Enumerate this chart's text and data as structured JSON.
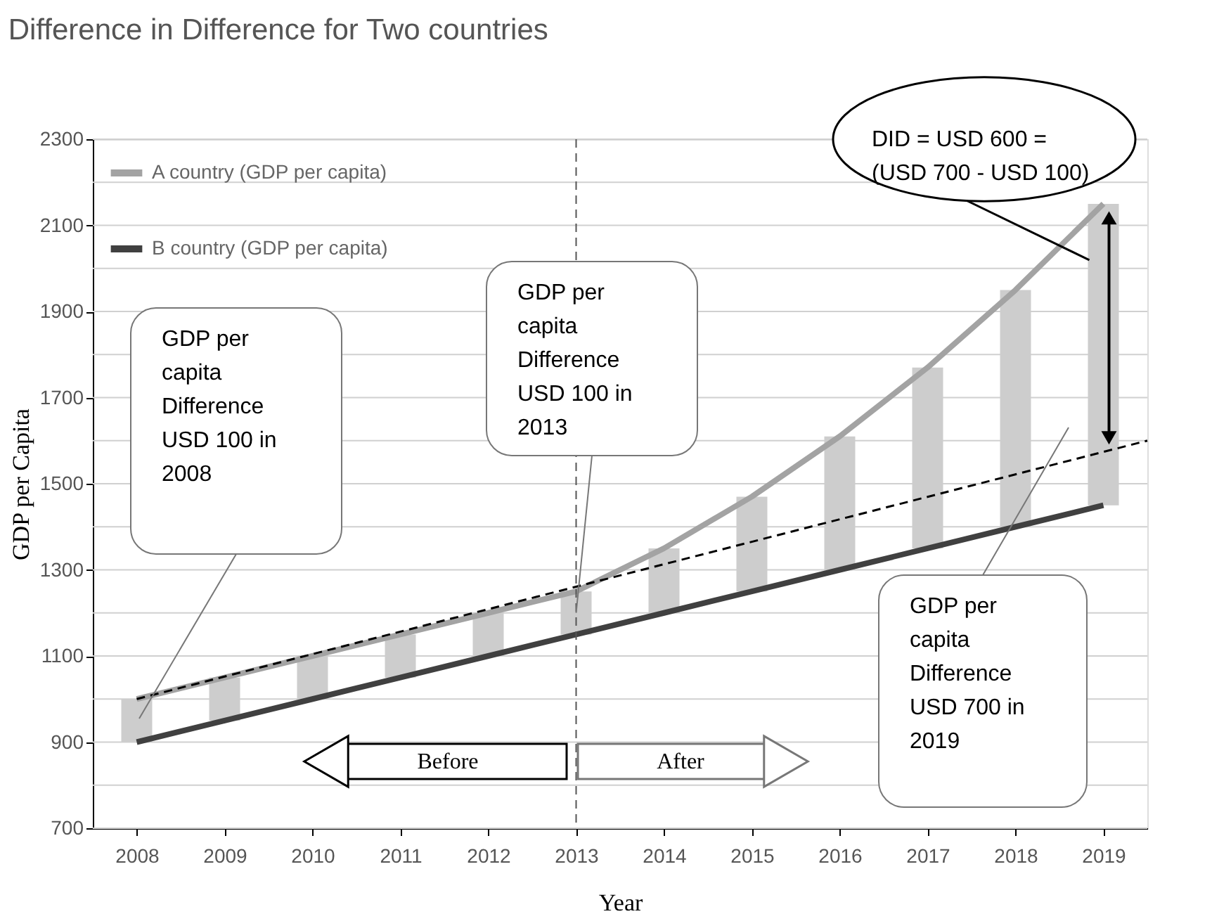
{
  "chart_data": {
    "type": "line",
    "title": "Difference in Difference for Two countries",
    "xlabel": "Year",
    "ylabel": "GDP per Capita",
    "x": [
      2008,
      2009,
      2010,
      2011,
      2012,
      2013,
      2014,
      2015,
      2016,
      2017,
      2018,
      2019
    ],
    "series": [
      {
        "type": "bar",
        "color": "#cdcdcd",
        "base": [
          900,
          950,
          1000,
          1050,
          1100,
          1150,
          1200,
          1250,
          1300,
          1350,
          1400,
          1450
        ],
        "values": [
          100,
          100,
          100,
          100,
          100,
          100,
          150,
          220,
          310,
          420,
          550,
          700
        ]
      },
      {
        "name": "A country    (GDP per capita)",
        "color": "#a3a3a3",
        "values": [
          1000,
          1050,
          1100,
          1150,
          1200,
          1250,
          1350,
          1470,
          1610,
          1770,
          1950,
          2150
        ]
      },
      {
        "name": "B country    (GDP per capita)",
        "color": "#404040",
        "values": [
          900,
          950,
          1000,
          1050,
          1100,
          1150,
          1200,
          1250,
          1300,
          1350,
          1400,
          1450
        ]
      },
      {
        "type": "line",
        "line_style": "dashed",
        "color": "#000000",
        "x": [
          2008,
          2019.5
        ],
        "values": [
          1000,
          1600
        ]
      }
    ],
    "xlim": [
      2007.5,
      2019.5
    ],
    "xticks": [
      2008,
      2009,
      2010,
      2011,
      2012,
      2013,
      2014,
      2015,
      2016,
      2017,
      2018,
      2019
    ],
    "ylim": [
      700,
      2300
    ],
    "yticks": [
      700,
      {
        "value": 800,
        "label": null
      },
      900,
      {
        "value": 1000,
        "label": null
      },
      1100,
      {
        "value": 1200,
        "label": null
      },
      1300,
      {
        "value": 1400,
        "label": null
      },
      1500,
      {
        "value": 1600,
        "label": null
      },
      1700,
      {
        "value": 1800,
        "label": null
      },
      1900,
      {
        "value": 2000,
        "label": null
      },
      2100,
      {
        "value": 2200,
        "label": null
      },
      2300
    ],
    "grid": "y",
    "legend": "top left",
    "ref_lines": [
      {
        "axis": "x",
        "value": 2013,
        "line_style": "dashed",
        "color": "#555555"
      }
    ],
    "annotations": [
      "GDP per\ncapita\nDifference\nUSD 100 in\n2008",
      {
        "text": "GDP per\ncapita\nDifference\nUSD 100 in\n2013",
        "x": 2013,
        "y": 1200
      },
      "GDP per\ncapita\nDifference\nUSD 700 in\n2019",
      {
        "text": "DID = USD 600 =\n(USD 700 - USD 100)",
        "x": 2019,
        "y": 2150
      },
      "Before",
      "After"
    ]
  }
}
